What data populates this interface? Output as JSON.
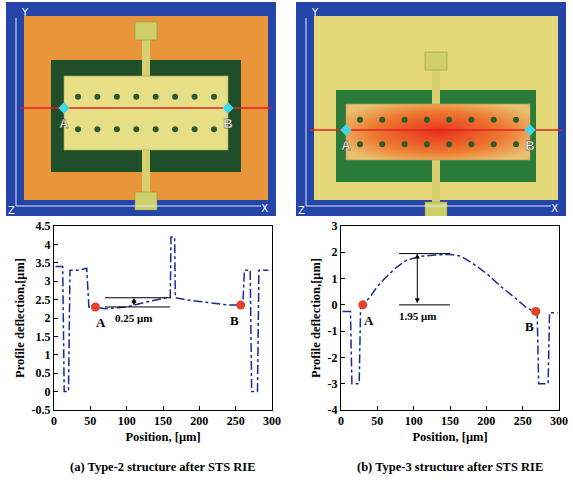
{
  "images": [
    {
      "axis_labels": [
        "Y",
        "X",
        "Z"
      ],
      "points": [
        "A",
        "B"
      ]
    },
    {
      "axis_labels": [
        "Y",
        "X",
        "Z"
      ],
      "points": [
        "A",
        "B"
      ]
    }
  ],
  "chart_data": [
    {
      "type": "line",
      "title": "(a) Type-2 structure after STS RIE",
      "x_label": "Position, [μm]",
      "y_label": "Profile deflection,[μm]",
      "x": [
        2,
        12,
        14,
        20,
        22,
        35,
        45,
        48,
        55,
        70,
        100,
        130,
        155,
        160,
        161,
        166,
        167,
        180,
        200,
        220,
        240,
        255,
        260,
        262,
        270,
        272,
        280,
        282,
        295
      ],
      "values": [
        3.4,
        3.4,
        0,
        0,
        3.3,
        3.3,
        3.35,
        2.3,
        2.3,
        2.25,
        2.3,
        2.45,
        2.55,
        2.55,
        4.2,
        4.2,
        2.55,
        2.5,
        2.45,
        2.4,
        2.35,
        2.35,
        2.4,
        3.3,
        3.3,
        0,
        0,
        3.3,
        3.3
      ],
      "color": "#1a2a9a",
      "line_style": "dashdot",
      "xlim": [
        0,
        300
      ],
      "xticks": [
        0,
        50,
        100,
        150,
        200,
        250,
        300
      ],
      "ylim": [
        -0.5,
        4.5
      ],
      "yticks": [
        -0.5,
        0,
        0.5,
        1,
        1.5,
        2,
        2.5,
        3,
        3.5,
        4,
        4.5
      ],
      "grid": false,
      "annotations": [
        {
          "text": "A",
          "x": 57,
          "y": 2.3,
          "color": "#e8412a"
        },
        {
          "text": "B",
          "x": 257,
          "y": 2.35,
          "color": "#e8412a"
        }
      ],
      "measurement": {
        "text": "0.25 μm",
        "x": 110,
        "from": 2.3,
        "to": 2.55,
        "x_range": [
          70,
          160
        ]
      }
    },
    {
      "type": "line",
      "title": "(b) Type-3 structure after STS RIE",
      "x_label": "Position, [μm]",
      "y_label": "Profile deflection,[μm]",
      "x": [
        2,
        13,
        15,
        25,
        27,
        30,
        40,
        50,
        60,
        75,
        90,
        110,
        130,
        150,
        165,
        180,
        200,
        220,
        240,
        255,
        265,
        270,
        272,
        285,
        287,
        298
      ],
      "values": [
        -0.25,
        -0.25,
        -3,
        -3,
        -0.05,
        0,
        0.3,
        0.7,
        1.0,
        1.4,
        1.7,
        1.85,
        1.9,
        1.92,
        1.85,
        1.6,
        1.2,
        0.7,
        0.25,
        -0.1,
        -0.25,
        -0.3,
        -3,
        -3,
        -0.3,
        -0.3
      ],
      "color": "#1a2a9a",
      "line_style": "dashdot",
      "xlim": [
        0,
        300
      ],
      "xticks": [
        0,
        50,
        100,
        150,
        200,
        250,
        300
      ],
      "ylim": [
        -4,
        3
      ],
      "yticks": [
        -4,
        -3,
        -2,
        -1,
        0,
        1,
        2,
        3
      ],
      "grid": false,
      "annotations": [
        {
          "text": "A",
          "x": 30,
          "y": 0,
          "color": "#e8412a"
        },
        {
          "text": "B",
          "x": 268,
          "y": -0.25,
          "color": "#e8412a"
        }
      ],
      "measurement": {
        "text": "1.95 μm",
        "x": 105,
        "from": 0,
        "to": 1.95,
        "x_range": [
          80,
          150
        ]
      }
    }
  ]
}
